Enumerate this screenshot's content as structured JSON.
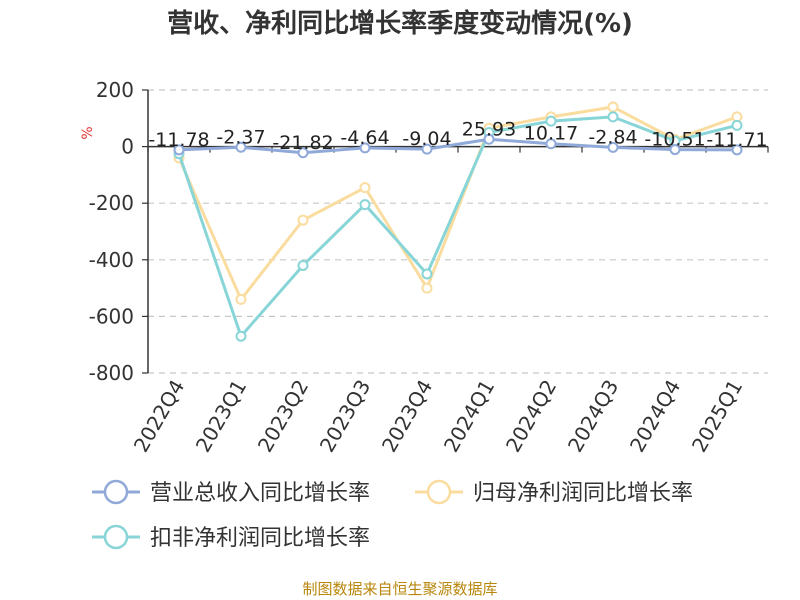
{
  "chart_data": {
    "type": "line",
    "title": "营收、净利同比增长率季度变动情况(%)",
    "ylabel": "%",
    "xlabel": "",
    "categories": [
      "2022Q4",
      "2023Q1",
      "2023Q2",
      "2023Q3",
      "2023Q4",
      "2024Q1",
      "2024Q2",
      "2024Q3",
      "2024Q4",
      "2025Q1"
    ],
    "ylim": [
      -800,
      200
    ],
    "yticks": [
      200,
      0,
      -200,
      -400,
      -600,
      -800
    ],
    "grid": true,
    "series": [
      {
        "name": "营业总收入同比增长率",
        "color": "#8fa9d9",
        "values": [
          -11.78,
          -2.37,
          -21.82,
          -4.64,
          -9.04,
          25.93,
          10.17,
          -2.84,
          -10.51,
          -11.71
        ],
        "labels": [
          "-11.78",
          "-2.37",
          "-21.82",
          "-4.64",
          "-9.04",
          "25.93",
          "10.17",
          "-2.84",
          "-10.51",
          "-11.71"
        ]
      },
      {
        "name": "归母净利润同比增长率",
        "color": "#fadc9e",
        "values": [
          -40,
          -540,
          -260,
          -145,
          -500,
          65,
          105,
          140,
          25,
          105
        ]
      },
      {
        "name": "扣非净利润同比增长率",
        "color": "#88d5d8",
        "values": [
          -25,
          -670,
          -420,
          -205,
          -450,
          50,
          90,
          105,
          20,
          75
        ]
      }
    ],
    "legend_position": "bottom"
  },
  "footer": {
    "source": "制图数据来自恒生聚源数据库"
  }
}
